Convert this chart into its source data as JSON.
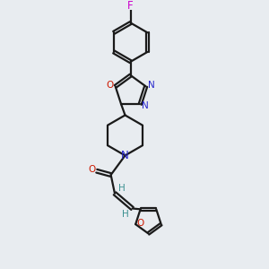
{
  "background_color": "#e8ecf0",
  "bond_color": "#1a1a1a",
  "N_color": "#2525cc",
  "O_color": "#cc1800",
  "F_color": "#cc00cc",
  "H_color": "#3a9090",
  "figsize": [
    3.0,
    3.0
  ],
  "dpi": 100,
  "xlim": [
    0,
    10
  ],
  "ylim": [
    0,
    10
  ]
}
